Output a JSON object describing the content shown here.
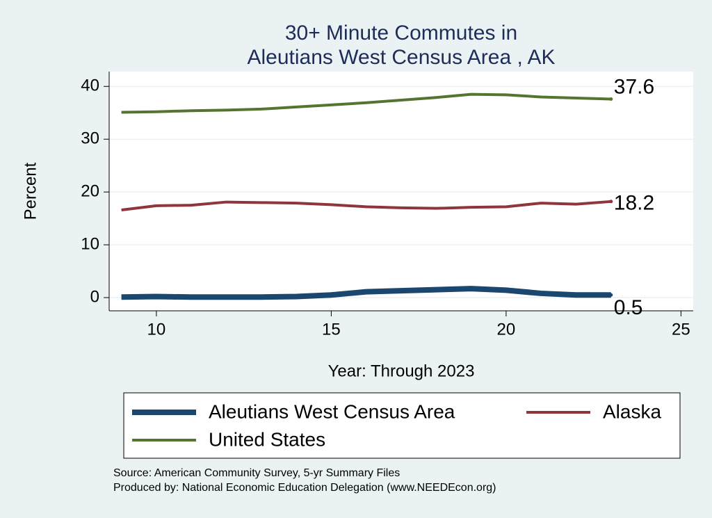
{
  "chart_data": {
    "type": "line",
    "title": [
      "30+ Minute Commutes in",
      "Aleutians West Census Area , AK"
    ],
    "x_label": "Year: Through 2023",
    "y_label": "Percent",
    "x": [
      9,
      10,
      11,
      12,
      13,
      14,
      15,
      16,
      17,
      18,
      19,
      20,
      21,
      22,
      23
    ],
    "series": [
      {
        "name": "Aleutians West Census Area",
        "color": "#1a476f",
        "values": [
          0.1,
          0.2,
          0.1,
          0.1,
          0.1,
          0.2,
          0.5,
          1.1,
          1.3,
          1.5,
          1.7,
          1.4,
          0.8,
          0.5,
          0.5
        ]
      },
      {
        "name": "Alaska",
        "color": "#90353b",
        "values": [
          16.6,
          17.4,
          17.5,
          18.1,
          18.0,
          17.9,
          17.6,
          17.2,
          17.0,
          16.9,
          17.1,
          17.2,
          17.9,
          17.7,
          18.2
        ]
      },
      {
        "name": "United States",
        "color": "#55752f",
        "values": [
          35.1,
          35.2,
          35.4,
          35.5,
          35.7,
          36.1,
          36.5,
          36.9,
          37.4,
          37.9,
          38.5,
          38.4,
          38.0,
          37.8,
          37.6
        ]
      }
    ],
    "xlim": [
      8.65,
      25.35
    ],
    "xticks": [
      10,
      15,
      20,
      25
    ],
    "ylim": [
      -2.5,
      42.8
    ],
    "yticks": [
      0,
      10,
      20,
      30,
      40
    ],
    "grid": true,
    "notes": [
      "Source: American Community Survey, 5-yr Summary Files",
      "Produced by: National Economic Education Delegation (www.NEEDEcon.org)"
    ]
  }
}
